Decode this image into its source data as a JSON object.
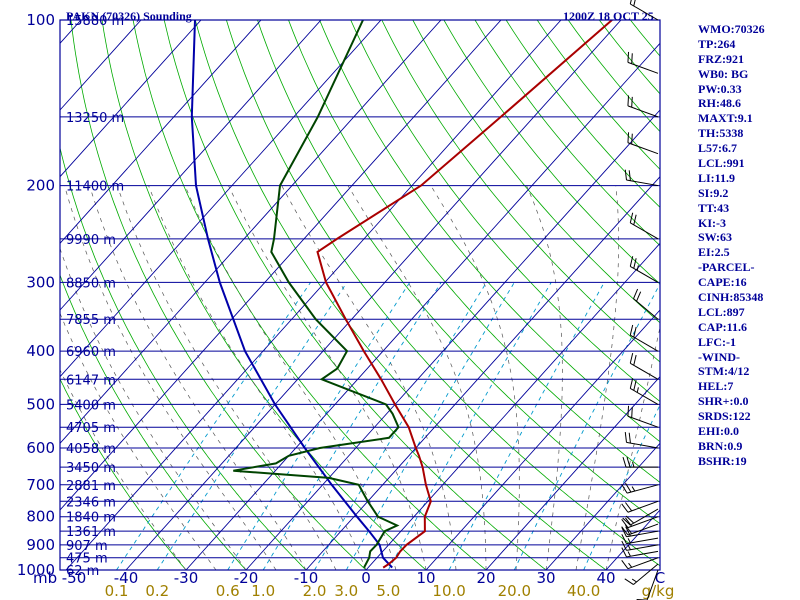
{
  "header": {
    "station": "PAKN (70326) Sounding",
    "time": "1200Z 18 OCT 25"
  },
  "indices": [
    "WMO:70326",
    "TP:264",
    "FRZ:921",
    "WB0: BG",
    "PW:0.33",
    "RH:48.6",
    "MAXT:9.1",
    "TH:5338",
    "L57:6.7",
    "LCL:991",
    "LI:11.9",
    "SI:9.2",
    "TT:43",
    "KI:-3",
    "SW:63",
    "EI:2.5",
    "-PARCEL-",
    "CAPE:16",
    "CINH:85348",
    "LCL:897",
    "CAP:11.6",
    "LFC:-1",
    "-WIND-",
    "STM:4/12",
    "HEL:7",
    "SHR+:0.0",
    "SRDS:122",
    "EHI:0.0",
    "BRN:0.9",
    "BSHR:19"
  ],
  "colors": {
    "axes": "#000099",
    "isobars": "#000099",
    "isotherms": "#000099",
    "dry_adiabats": "#00aa00",
    "moist_adiabats": "#555555",
    "mixing_ratio": "#0099cc",
    "temperature": "#aa0000",
    "dewpoint": "#004400",
    "parcel": "#0000aa",
    "mixing_labels": "#a08000"
  },
  "chart_data": {
    "type": "skew-t",
    "x_unit_label": "C",
    "mixing_unit_label": "g/kg",
    "pressure_axis_unit": "mb",
    "pressure_ticks": [
      100,
      200,
      300,
      400,
      500,
      600,
      700,
      800,
      900,
      1000
    ],
    "temperature_ticks": [
      -50,
      -40,
      -30,
      -20,
      -10,
      0,
      10,
      20,
      30,
      40
    ],
    "xlim_at_1000mb": [
      -50,
      50
    ],
    "ylim_mb": [
      1000,
      100
    ],
    "height_labels": [
      {
        "p": 100,
        "label": "15880 m"
      },
      {
        "p": 150,
        "label": "13250 m"
      },
      {
        "p": 200,
        "label": "11400 m"
      },
      {
        "p": 250,
        "label": "9990 m"
      },
      {
        "p": 300,
        "label": "8850 m"
      },
      {
        "p": 350,
        "label": "7855 m"
      },
      {
        "p": 400,
        "label": "6960 m"
      },
      {
        "p": 450,
        "label": "6147 m"
      },
      {
        "p": 500,
        "label": "5400 m"
      },
      {
        "p": 550,
        "label": "4705 m"
      },
      {
        "p": 600,
        "label": "4058 m"
      },
      {
        "p": 650,
        "label": "3450 m"
      },
      {
        "p": 700,
        "label": "2881 m"
      },
      {
        "p": 750,
        "label": "2346 m"
      },
      {
        "p": 800,
        "label": "1840 m"
      },
      {
        "p": 850,
        "label": "1361 m"
      },
      {
        "p": 900,
        "label": "907 m"
      },
      {
        "p": 950,
        "label": "475 m"
      },
      {
        "p": 1000,
        "label": "62 m"
      }
    ],
    "mixing_ratio_lines": [
      0.1,
      0.2,
      0.6,
      1.0,
      2.0,
      3.0,
      5.0,
      10.0,
      20.0,
      40.0
    ],
    "mixing_ratio_labels": [
      "0.1",
      "0.2",
      "0.6",
      "1.0",
      "2.0",
      "3.0",
      "5.0",
      "10.0",
      "20.0",
      "40.0"
    ],
    "temperature_profile": [
      {
        "p": 990,
        "t": 2.5
      },
      {
        "p": 975,
        "t": 2.9
      },
      {
        "p": 950,
        "t": 3.2
      },
      {
        "p": 925,
        "t": 2.9
      },
      {
        "p": 900,
        "t": 3.0
      },
      {
        "p": 850,
        "t": 4.0
      },
      {
        "p": 800,
        "t": 1.8
      },
      {
        "p": 750,
        "t": 0.5
      },
      {
        "p": 700,
        "t": -2.8
      },
      {
        "p": 650,
        "t": -6.0
      },
      {
        "p": 620,
        "t": -8.3
      },
      {
        "p": 600,
        "t": -10.0
      },
      {
        "p": 550,
        "t": -14.3
      },
      {
        "p": 500,
        "t": -20.0
      },
      {
        "p": 450,
        "t": -26.1
      },
      {
        "p": 400,
        "t": -33.2
      },
      {
        "p": 350,
        "t": -41.0
      },
      {
        "p": 300,
        "t": -49.8
      },
      {
        "p": 264,
        "t": -55.8
      },
      {
        "p": 250,
        "t": -54.5
      },
      {
        "p": 200,
        "t": -48.5
      },
      {
        "p": 150,
        "t": -45.5
      },
      {
        "p": 100,
        "t": -41.5
      }
    ],
    "dewpoint_profile": [
      {
        "p": 990,
        "td": -0.7
      },
      {
        "p": 950,
        "td": -1.3
      },
      {
        "p": 925,
        "td": -2.1
      },
      {
        "p": 900,
        "td": -2.0
      },
      {
        "p": 850,
        "td": -2.7
      },
      {
        "p": 830,
        "td": -1.5
      },
      {
        "p": 800,
        "td": -6.0
      },
      {
        "p": 750,
        "td": -10.0
      },
      {
        "p": 700,
        "td": -14.0
      },
      {
        "p": 680,
        "td": -20.0
      },
      {
        "p": 660,
        "td": -37.0
      },
      {
        "p": 640,
        "td": -31.0
      },
      {
        "p": 620,
        "td": -30.0
      },
      {
        "p": 600,
        "td": -26.0
      },
      {
        "p": 575,
        "td": -16.0
      },
      {
        "p": 550,
        "td": -16.0
      },
      {
        "p": 520,
        "td": -19.0
      },
      {
        "p": 500,
        "td": -21.5
      },
      {
        "p": 470,
        "td": -30.0
      },
      {
        "p": 450,
        "td": -36.0
      },
      {
        "p": 430,
        "td": -35.0
      },
      {
        "p": 400,
        "td": -36.0
      },
      {
        "p": 350,
        "td": -46.0
      },
      {
        "p": 300,
        "td": -56.0
      },
      {
        "p": 264,
        "td": -63.5
      },
      {
        "p": 250,
        "td": -65.0
      },
      {
        "p": 200,
        "td": -72.0
      },
      {
        "p": 150,
        "td": -76.0
      },
      {
        "p": 100,
        "td": -83.0
      }
    ],
    "parcel_profile": [
      {
        "p": 990,
        "t": 4.0
      },
      {
        "p": 950,
        "t": 1.0
      },
      {
        "p": 900,
        "t": -1.5
      },
      {
        "p": 850,
        "t": -5.3
      },
      {
        "p": 800,
        "t": -9.5
      },
      {
        "p": 700,
        "t": -18.5
      },
      {
        "p": 600,
        "t": -28.5
      },
      {
        "p": 500,
        "t": -40.0
      },
      {
        "p": 400,
        "t": -53.0
      },
      {
        "p": 300,
        "t": -67.5
      },
      {
        "p": 250,
        "t": -76.0
      },
      {
        "p": 200,
        "t": -86.0
      },
      {
        "p": 150,
        "t": -97.0
      },
      {
        "p": 100,
        "t": -111.0
      }
    ],
    "wind_barbs": [
      {
        "p": 1000,
        "dir": 200,
        "kt": 10
      },
      {
        "p": 975,
        "dir": 230,
        "kt": 15
      },
      {
        "p": 950,
        "dir": 250,
        "kt": 15
      },
      {
        "p": 925,
        "dir": 260,
        "kt": 15
      },
      {
        "p": 900,
        "dir": 260,
        "kt": 15
      },
      {
        "p": 875,
        "dir": 260,
        "kt": 15
      },
      {
        "p": 850,
        "dir": 260,
        "kt": 20
      },
      {
        "p": 825,
        "dir": 250,
        "kt": 20
      },
      {
        "p": 800,
        "dir": 250,
        "kt": 20
      },
      {
        "p": 775,
        "dir": 240,
        "kt": 20
      },
      {
        "p": 750,
        "dir": 250,
        "kt": 20
      },
      {
        "p": 700,
        "dir": 255,
        "kt": 25
      },
      {
        "p": 650,
        "dir": 270,
        "kt": 25
      },
      {
        "p": 600,
        "dir": 280,
        "kt": 20
      },
      {
        "p": 550,
        "dir": 290,
        "kt": 20
      },
      {
        "p": 500,
        "dir": 300,
        "kt": 25
      },
      {
        "p": 450,
        "dir": 300,
        "kt": 20
      },
      {
        "p": 400,
        "dir": 300,
        "kt": 20
      },
      {
        "p": 350,
        "dir": 310,
        "kt": 20
      },
      {
        "p": 300,
        "dir": 300,
        "kt": 25
      },
      {
        "p": 250,
        "dir": 300,
        "kt": 20
      },
      {
        "p": 200,
        "dir": 280,
        "kt": 20
      },
      {
        "p": 175,
        "dir": 290,
        "kt": 20
      },
      {
        "p": 150,
        "dir": 290,
        "kt": 20
      },
      {
        "p": 125,
        "dir": 290,
        "kt": 20
      },
      {
        "p": 100,
        "dir": 300,
        "kt": 20
      }
    ]
  }
}
